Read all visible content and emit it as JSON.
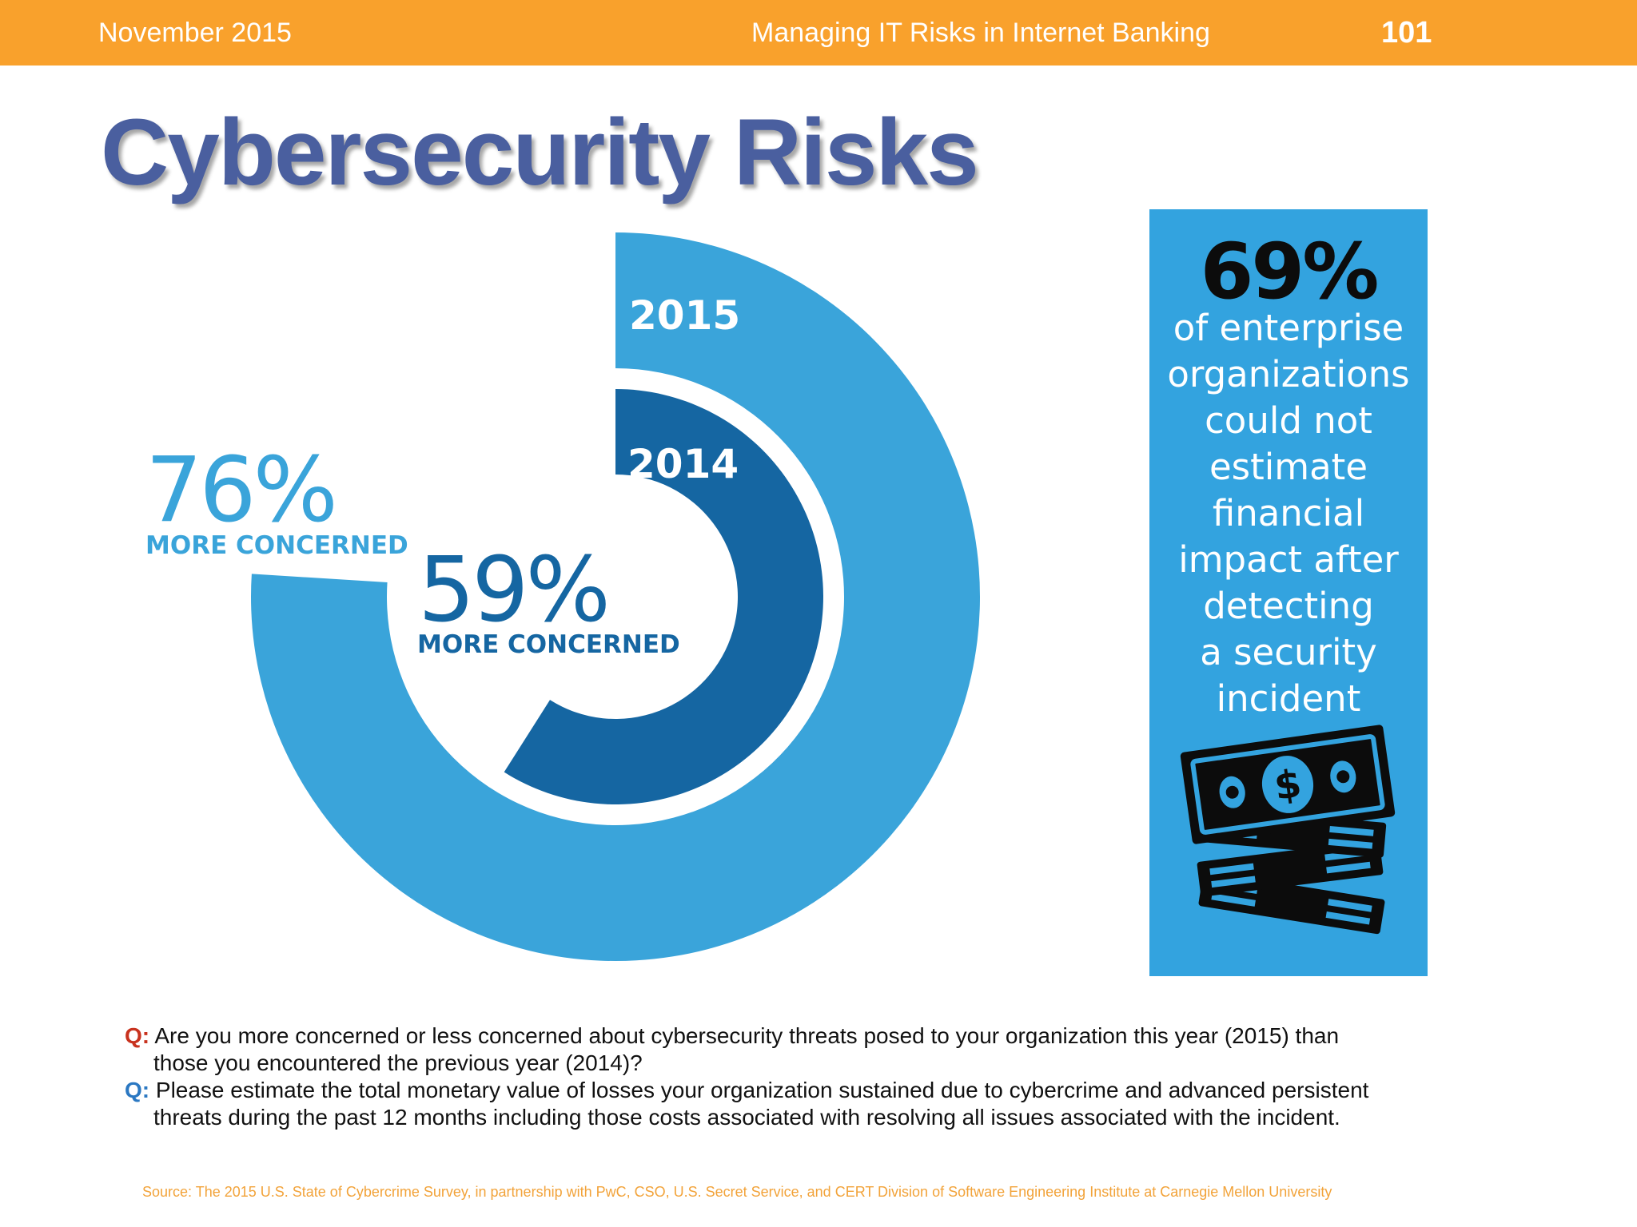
{
  "header": {
    "date": "November 2015",
    "title": "Managing IT Risks in Internet Banking",
    "page_number": "101"
  },
  "page_title": "Cybersecurity Risks",
  "chart_data": {
    "type": "pie",
    "title": "",
    "series": [
      {
        "name": "2015",
        "value": 76,
        "value_label": "76%",
        "caption": "MORE CONCERNED",
        "color": "#3aa4da"
      },
      {
        "name": "2014",
        "value": 59,
        "value_label": "59%",
        "caption": "MORE CONCERNED",
        "color": "#1566a2"
      }
    ]
  },
  "side_panel": {
    "percent": "69%",
    "lines": [
      "of enterprise",
      "organizations",
      "could not",
      "estimate",
      "financial",
      "impact after",
      "detecting",
      "a security",
      "incident"
    ],
    "icon": "money-stack-icon",
    "bg_color": "#33a3df"
  },
  "questions": [
    {
      "marker": "Q:",
      "text": "Are you more concerned or less concerned about cybersecurity threats posed to your organization this year (2015) than those you encountered the previous year (2014)?"
    },
    {
      "marker": "Q:",
      "text": "Please estimate the total monetary value of losses your organization sustained due to cybercrime and advanced persistent threats during the past 12 months including those costs associated with resolving all issues associated with the incident."
    }
  ],
  "source": "Source: The 2015 U.S. State of Cybercrime Survey, in partnership with PwC, CSO, U.S. Secret Service, and CERT Division of Software Engineering Institute at Carnegie Mellon University",
  "colors": {
    "header_bg": "#f9a12c",
    "title": "#4a5f9f"
  }
}
